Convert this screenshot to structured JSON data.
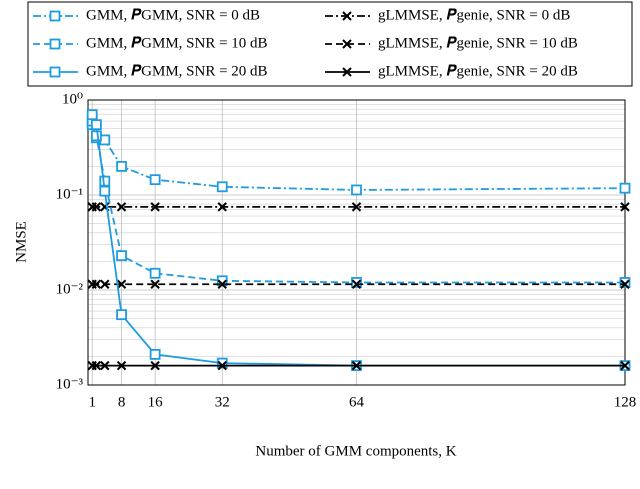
{
  "chart_data": {
    "type": "line",
    "y_scale": "log",
    "grid": true,
    "xlabel": "Number of GMM components, K",
    "ylabel": "NMSE",
    "x": [
      1,
      2,
      4,
      8,
      16,
      32,
      64,
      128
    ],
    "xlim": [
      0,
      128
    ],
    "xticks": [
      1,
      8,
      16,
      32,
      64,
      128
    ],
    "ylim": [
      0.001,
      1
    ],
    "yticks": [
      {
        "value": 1,
        "label": "10⁰"
      },
      {
        "value": 0.1,
        "label": "10⁻¹"
      },
      {
        "value": 0.01,
        "label": "10⁻²"
      },
      {
        "value": 0.001,
        "label": "10⁻³"
      }
    ],
    "series": [
      {
        "name": "GMM, 𝑷GMM, SNR = 0 dB",
        "color": "#1f9be0",
        "marker": "square",
        "line_style": "dashdot",
        "values": [
          0.55,
          0.4,
          0.38,
          0.2,
          0.145,
          0.122,
          0.113,
          0.118
        ]
      },
      {
        "name": "gLMMSE, 𝑷genie, SNR = 0 dB",
        "color": "#000000",
        "marker": "x",
        "line_style": "dashdot",
        "values": [
          0.075,
          0.075,
          0.075,
          0.075,
          0.075,
          0.075,
          0.075,
          0.075
        ]
      },
      {
        "name": "GMM, 𝑷GMM, SNR = 10 dB",
        "color": "#1f9be0",
        "marker": "square",
        "line_style": "dashed",
        "values": [
          0.6,
          0.42,
          0.14,
          0.023,
          0.015,
          0.0125,
          0.012,
          0.012
        ]
      },
      {
        "name": "gLMMSE, 𝑷genie, SNR = 10 dB",
        "color": "#000000",
        "marker": "x",
        "line_style": "dashed",
        "values": [
          0.0115,
          0.0115,
          0.0115,
          0.0115,
          0.0115,
          0.0115,
          0.0115,
          0.0115
        ]
      },
      {
        "name": "GMM, 𝑷GMM, SNR = 20 dB",
        "color": "#1f9be0",
        "marker": "square",
        "line_style": "solid",
        "values": [
          0.7,
          0.55,
          0.11,
          0.0055,
          0.0021,
          0.0017,
          0.0016,
          0.0016
        ]
      },
      {
        "name": "gLMMSE, 𝑷genie, SNR = 20 dB",
        "color": "#000000",
        "marker": "x",
        "line_style": "solid",
        "values": [
          0.0016,
          0.0016,
          0.0016,
          0.0016,
          0.0016,
          0.0016,
          0.0016,
          0.0016
        ]
      }
    ]
  }
}
